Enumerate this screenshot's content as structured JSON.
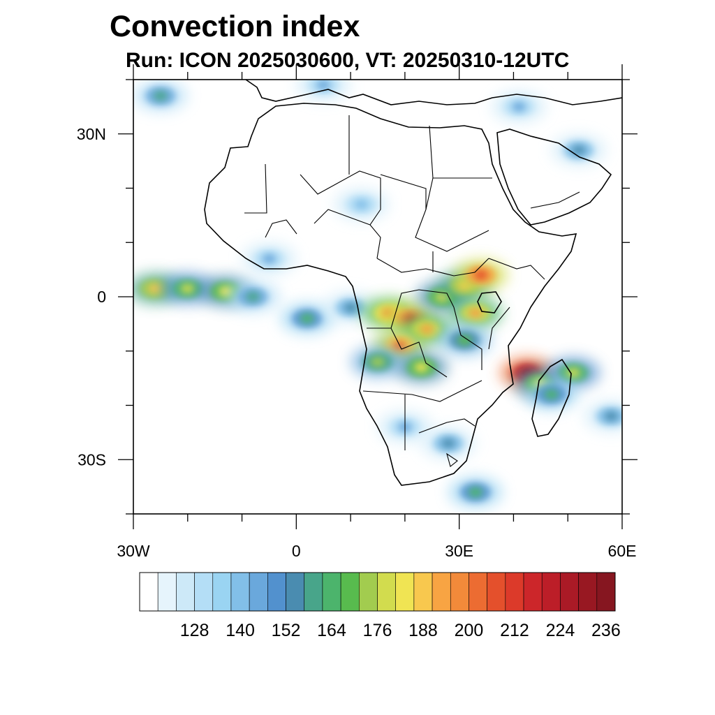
{
  "title": "Convection index",
  "subtitle": "Run: ICON 2025030600,  VT: 20250310-12UTC",
  "map": {
    "lon_range": [
      -30,
      60
    ],
    "lat_range": [
      -40,
      40
    ],
    "x_ticks": [
      {
        "lon": -30,
        "label": "30W"
      },
      {
        "lon": 0,
        "label": "0"
      },
      {
        "lon": 30,
        "label": "30E"
      },
      {
        "lon": 60,
        "label": "60E"
      }
    ],
    "y_ticks": [
      {
        "lat": 30,
        "label": "30N"
      },
      {
        "lat": 0,
        "label": "0"
      },
      {
        "lat": -30,
        "label": "30S"
      }
    ],
    "minor_lon_step": 10,
    "minor_lat_step": 10
  },
  "colorbar": {
    "colors": [
      "#ffffff",
      "#e6f4fc",
      "#cde9f8",
      "#b4def6",
      "#9ad4f2",
      "#82bfe8",
      "#6aa8dc",
      "#5291ce",
      "#4a8cb0",
      "#48a58a",
      "#4cb46c",
      "#58bb4e",
      "#a2cc4f",
      "#d2dc4e",
      "#f0e453",
      "#f8c84e",
      "#f8a443",
      "#f28a3a",
      "#ec6c32",
      "#e4502c",
      "#dc3a2a",
      "#cc262a",
      "#bc1e28",
      "#aa1a26",
      "#981822",
      "#861620"
    ],
    "labels": [
      "128",
      "140",
      "152",
      "164",
      "176",
      "188",
      "200",
      "212",
      "224",
      "236"
    ]
  },
  "convection_blobs": [
    {
      "lon": -26,
      "lat": 1.5,
      "level": 15
    },
    {
      "lon": -20,
      "lat": 1.5,
      "level": 13
    },
    {
      "lon": -13,
      "lat": 1.0,
      "level": 14
    },
    {
      "lon": -8,
      "lat": 0.0,
      "level": 9
    },
    {
      "lon": 2,
      "lat": -4,
      "level": 10
    },
    {
      "lon": 10,
      "lat": -2,
      "level": 8
    },
    {
      "lon": 17,
      "lat": -3,
      "level": 17
    },
    {
      "lon": 21,
      "lat": -4,
      "level": 19
    },
    {
      "lon": 24,
      "lat": -6,
      "level": 16
    },
    {
      "lon": 19,
      "lat": -9,
      "level": 18
    },
    {
      "lon": 23,
      "lat": -13,
      "level": 14
    },
    {
      "lon": 15,
      "lat": -12,
      "level": 12
    },
    {
      "lon": 27,
      "lat": 0,
      "level": 14
    },
    {
      "lon": 31,
      "lat": 2,
      "level": 15
    },
    {
      "lon": 33,
      "lat": -3,
      "level": 16
    },
    {
      "lon": 31,
      "lat": -8,
      "level": 11
    },
    {
      "lon": 34,
      "lat": 4,
      "level": 19
    },
    {
      "lon": 42.5,
      "lat": -14,
      "level": 24
    },
    {
      "lon": 45,
      "lat": -16,
      "level": 14
    },
    {
      "lon": 51,
      "lat": -14,
      "level": 13
    },
    {
      "lon": 47,
      "lat": -18,
      "level": 10
    },
    {
      "lon": 28,
      "lat": -27,
      "level": 8
    },
    {
      "lon": 33,
      "lat": -36,
      "level": 10
    },
    {
      "lon": 20,
      "lat": -24,
      "level": 6
    },
    {
      "lon": -25,
      "lat": 37,
      "level": 9
    },
    {
      "lon": 52,
      "lat": 27,
      "level": 8
    },
    {
      "lon": 41,
      "lat": 35,
      "level": 6
    },
    {
      "lon": 12,
      "lat": 17,
      "level": 5
    },
    {
      "lon": -5,
      "lat": 7,
      "level": 6
    },
    {
      "lon": 58,
      "lat": -22,
      "level": 8
    },
    {
      "lon": 5,
      "lat": 39,
      "level": 6
    }
  ]
}
